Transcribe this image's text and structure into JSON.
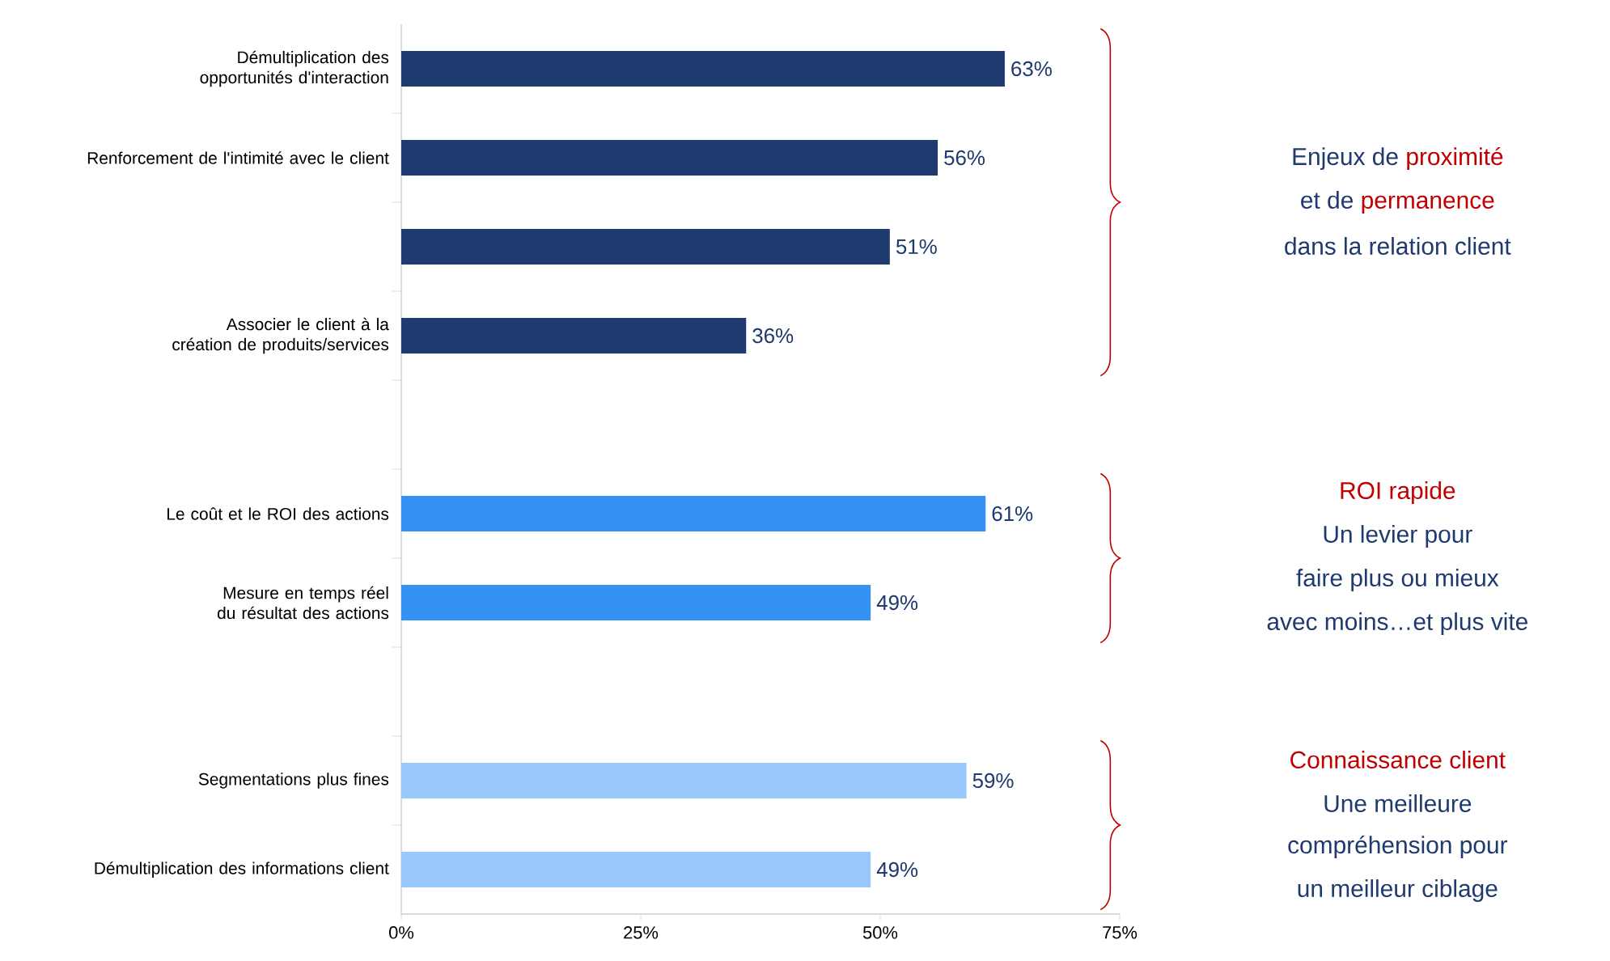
{
  "chart_data": {
    "type": "bar",
    "orientation": "horizontal",
    "categories": [
      "Démultiplication des opportunités d'interaction",
      "Renforcement de l'intimité avec le client",
      null,
      "Associer le client à la création de produits/services",
      null,
      "Le coût et le ROI des actions",
      "Mesure en temps réel du résultat des actions",
      null,
      "Segmentations plus fines",
      "Démultiplication des informations client"
    ],
    "values": [
      63,
      56,
      51,
      36,
      null,
      61,
      49,
      null,
      59,
      49
    ],
    "value_labels": [
      "63%",
      "56%",
      "51%",
      "36%",
      null,
      "61%",
      "49%",
      null,
      "59%",
      "49%"
    ],
    "colors": [
      "#1f3a6e",
      "#1f3a6e",
      "#1f3a6e",
      "#1f3a6e",
      null,
      "#3592f2",
      "#3592f2",
      null,
      "#99c8fc",
      "#99c8fc"
    ],
    "xlim": [
      0,
      75
    ],
    "xticks": [
      {
        "value": 0,
        "label": "0%"
      },
      {
        "value": 25,
        "label": "25%"
      },
      {
        "value": 50,
        "label": "50%"
      },
      {
        "value": 75,
        "label": "75%"
      }
    ],
    "annotations": [
      "Enjeux de",
      "proximité",
      "et de",
      "permanence",
      "dans la relation client",
      "ROI rapide",
      "Un levier pour",
      "faire plus ou mieux",
      "avec moins…et plus vite",
      "Connaissance client",
      "Une meilleure",
      "compréhension pour",
      "un meilleur ciblage"
    ]
  }
}
